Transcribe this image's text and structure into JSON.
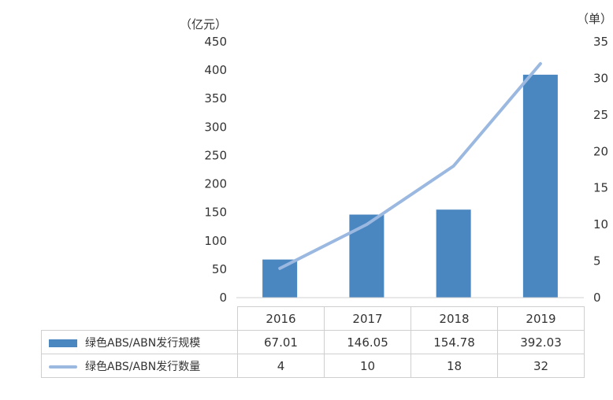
{
  "chart_data": {
    "type": "bar",
    "categories": [
      "2016",
      "2017",
      "2018",
      "2019"
    ],
    "series": [
      {
        "name": "绿色ABS/ABN发行规模",
        "type": "bar",
        "axis": "left",
        "values": [
          67.01,
          146.05,
          154.78,
          392.03
        ],
        "color": "#4a86c0"
      },
      {
        "name": "绿色ABS/ABN发行数量",
        "type": "line",
        "axis": "right",
        "values": [
          4,
          10,
          18,
          32
        ],
        "color": "#9ab8e0"
      }
    ],
    "left_axis": {
      "unit": "（亿元）",
      "min": 0,
      "max": 450,
      "step": 50,
      "ticks": [
        "0",
        "50",
        "100",
        "150",
        "200",
        "250",
        "300",
        "350",
        "400",
        "450"
      ]
    },
    "right_axis": {
      "unit": "（单）",
      "min": 0,
      "max": 35,
      "step": 5,
      "ticks": [
        "0",
        "5",
        "10",
        "15",
        "20",
        "25",
        "30",
        "35"
      ]
    },
    "grid": false,
    "legend": "data-table"
  },
  "table": {
    "rows": [
      {
        "label": "绿色ABS/ABN发行规模",
        "cells": [
          "67.01",
          "146.05",
          "154.78",
          "392.03"
        ]
      },
      {
        "label": "绿色ABS/ABN发行数量",
        "cells": [
          "4",
          "10",
          "18",
          "32"
        ]
      }
    ]
  }
}
